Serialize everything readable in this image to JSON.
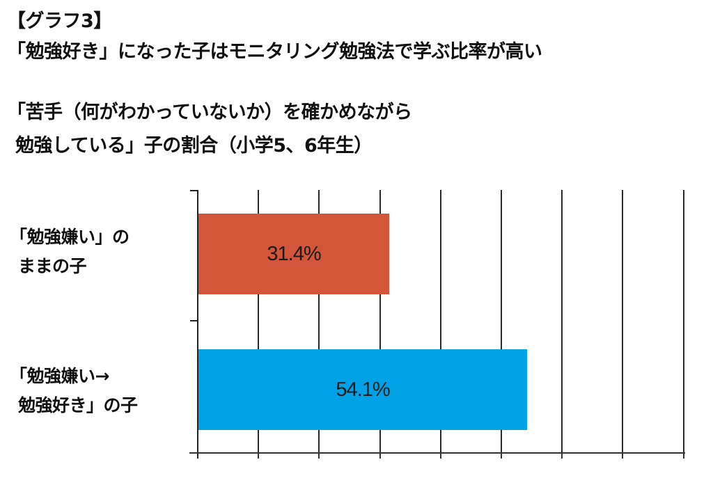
{
  "header": {
    "graph_label": "【グラフ3】",
    "headline": "「勉強好き」になった子はモニタリング勉強法で学ぶ比率が高い",
    "subtitle_line1": "「苦手（何がわかっていないか）を確かめながら",
    "subtitle_line2": "勉強している」子の割合（小学5、6年生）"
  },
  "categories": [
    {
      "line1": "「勉強嫌い」の",
      "line2": "ままの子"
    },
    {
      "line1": "「勉強嫌い→",
      "line2": "勉強好き」の子"
    }
  ],
  "bars": [
    {
      "value": 31.4,
      "label": "31.4%",
      "color": "#d3553a"
    },
    {
      "value": 54.1,
      "label": "54.1%",
      "color": "#00a2e5"
    }
  ],
  "colors": {
    "bar_low": "#d3553a",
    "bar_high": "#00a2e5",
    "grid": "#2a2a2a"
  },
  "chart_data": {
    "type": "bar",
    "orientation": "horizontal",
    "title": "「勉強好き」になった子はモニタリング勉強法で学ぶ比率が高い",
    "subtitle": "「苦手（何がわかっていないか）を確かめながら勉強している」子の割合（小学5、6年生）",
    "categories": [
      "「勉強嫌い」のままの子",
      "「勉強嫌い→勉強好き」の子"
    ],
    "values": [
      31.4,
      54.1
    ],
    "value_labels": [
      "31.4%",
      "54.1%"
    ],
    "xlabel": "",
    "ylabel": "",
    "xlim": [
      0,
      80
    ],
    "grid_step": 10,
    "grid": true,
    "tick_labels_shown": false,
    "legend": null
  }
}
